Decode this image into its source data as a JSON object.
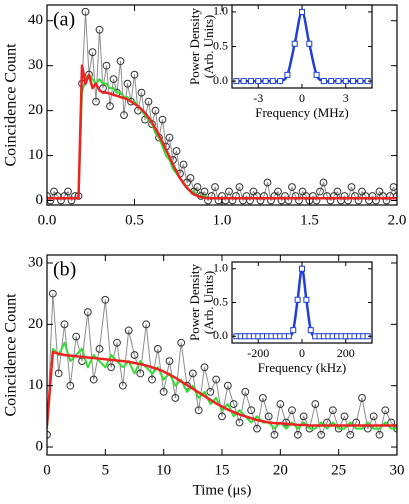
{
  "chart_data": [
    {
      "type": "line",
      "panel_label": "(a)",
      "ylabel": "Coincidence Count",
      "xlim": [
        0,
        2
      ],
      "ylim": [
        -1,
        43.5
      ],
      "xticks": [
        {
          "value": 0,
          "label": "0.0"
        },
        {
          "value": 0.5,
          "label": "0.5"
        },
        {
          "value": 1,
          "label": "1.0"
        },
        {
          "value": 1.5,
          "label": "1.5"
        },
        {
          "value": 2,
          "label": "2.0"
        }
      ],
      "yticks": [
        0,
        10,
        20,
        30,
        40
      ],
      "x": [
        0,
        0.02,
        0.04,
        0.06,
        0.08,
        0.1,
        0.12,
        0.14,
        0.16,
        0.18,
        0.2,
        0.22,
        0.24,
        0.26,
        0.28,
        0.3,
        0.32,
        0.34,
        0.36,
        0.38,
        0.4,
        0.42,
        0.44,
        0.46,
        0.48,
        0.5,
        0.52,
        0.54,
        0.56,
        0.58,
        0.6,
        0.62,
        0.64,
        0.66,
        0.68,
        0.7,
        0.72,
        0.74,
        0.76,
        0.78,
        0.8,
        0.82,
        0.84,
        0.86,
        0.88,
        0.9,
        0.92,
        0.94,
        0.96,
        0.98,
        1,
        1.02,
        1.04,
        1.06,
        1.08,
        1.1,
        1.12,
        1.14,
        1.16,
        1.18,
        1.2,
        1.22,
        1.24,
        1.26,
        1.28,
        1.3,
        1.32,
        1.34,
        1.36,
        1.38,
        1.4,
        1.42,
        1.44,
        1.46,
        1.48,
        1.5,
        1.52,
        1.54,
        1.56,
        1.58,
        1.6,
        1.62,
        1.64,
        1.66,
        1.68,
        1.7,
        1.72,
        1.74,
        1.76,
        1.78,
        1.8,
        1.82,
        1.84,
        1.86,
        1.88,
        1.9,
        1.92,
        1.94,
        1.96,
        1.98,
        2
      ],
      "series": [
        {
          "color": "#8c8c8c",
          "marker": "circle",
          "marker_color": "#333333",
          "values": [
            1,
            0,
            2,
            1,
            0,
            1,
            2,
            0,
            1,
            1,
            26,
            42,
            28,
            33,
            22,
            38,
            25,
            30,
            21,
            27,
            24,
            31,
            19,
            26,
            22,
            28,
            20,
            24,
            18,
            22,
            17,
            20,
            14,
            18,
            12,
            14,
            9,
            11,
            6,
            8,
            4,
            5,
            2,
            3,
            1,
            2,
            0,
            1,
            3,
            0,
            1,
            0,
            2,
            0,
            1,
            3,
            0,
            1,
            0,
            2,
            1,
            0,
            1,
            4,
            0,
            1,
            2,
            0,
            1,
            0,
            3,
            1,
            0,
            2,
            1,
            0,
            1,
            0,
            2,
            4,
            1,
            0,
            1,
            2,
            0,
            1,
            0,
            3,
            1,
            0,
            2,
            1,
            0,
            1,
            0,
            2,
            1,
            0,
            1,
            3,
            1
          ]
        },
        {
          "color": "#33dd33",
          "width": 2,
          "values": [
            0.5,
            0.5,
            0.5,
            0.5,
            0.5,
            0.5,
            0.5,
            0.5,
            0.5,
            0.5,
            24,
            27,
            28,
            27,
            26,
            27,
            26,
            26,
            25,
            25,
            24,
            24,
            23,
            23,
            22,
            22,
            21,
            20,
            19,
            18,
            17,
            15,
            14,
            12,
            10,
            9,
            7,
            6,
            5,
            4,
            3,
            2,
            2,
            1,
            1,
            1,
            0.5,
            0.5,
            0.5,
            0.5,
            0.5,
            0.5,
            0.5,
            0.5,
            0.5,
            0.5,
            0.5,
            0.5,
            0.5,
            0.5,
            0.5,
            0.5,
            0.5,
            0.5,
            0.5,
            0.5,
            0.5,
            0.5,
            0.5,
            0.5,
            0.5,
            0.5,
            0.5,
            0.5,
            0.5,
            0.5,
            0.5,
            0.5,
            0.5,
            0.5,
            0.5,
            0.5,
            0.5,
            0.5,
            0.5,
            0.5,
            0.5,
            0.5,
            0.5,
            0.5,
            0.5,
            0.5,
            0.5,
            0.5,
            0.5,
            0.5,
            0.5,
            0.5,
            0.5,
            0.5,
            0.5
          ]
        },
        {
          "color": "#ee2222",
          "width": 2.5,
          "values": [
            0.5,
            0.5,
            0.5,
            0.5,
            0.5,
            0.5,
            0.5,
            0.5,
            0.5,
            0.5,
            30,
            26,
            28,
            25,
            26,
            24.5,
            24,
            24,
            23.8,
            23.5,
            23.3,
            23,
            22.8,
            22.5,
            22,
            21.5,
            21,
            20.3,
            19.5,
            18.5,
            17.3,
            16,
            14.5,
            13,
            11.3,
            9.7,
            8,
            6.5,
            5,
            3.8,
            2.8,
            2,
            1.4,
            1,
            0.8,
            0.6,
            0.5,
            0.5,
            0.5,
            0.5,
            0.5,
            0.5,
            0.5,
            0.5,
            0.5,
            0.5,
            0.5,
            0.5,
            0.5,
            0.5,
            0.5,
            0.5,
            0.5,
            0.5,
            0.5,
            0.5,
            0.5,
            0.5,
            0.5,
            0.5,
            0.5,
            0.5,
            0.5,
            0.5,
            0.5,
            0.5,
            0.5,
            0.5,
            0.5,
            0.5,
            0.5,
            0.5,
            0.5,
            0.5,
            0.5,
            0.5,
            0.5,
            0.5,
            0.5,
            0.5,
            0.5,
            0.5,
            0.5,
            0.5,
            0.5,
            0.5,
            0.5,
            0.5,
            0.5,
            0.5,
            0.5
          ]
        }
      ]
    },
    {
      "type": "line",
      "xlabel": "Frequency (MHz)",
      "ylabel": [
        "Power Density",
        "(Arb. Units)"
      ],
      "xlim": [
        -4.8,
        4.8
      ],
      "ylim": [
        -0.1,
        1.1
      ],
      "xticks": [
        -3,
        0,
        3
      ],
      "yticks": [
        {
          "value": 0,
          "label": "0.0"
        },
        0.5,
        {
          "value": 1,
          "label": "1.0"
        }
      ],
      "x": [
        -4.5,
        -4,
        -3.5,
        -3,
        -2.5,
        -2,
        -1.5,
        -1,
        -0.5,
        0,
        0.5,
        1,
        1.5,
        2,
        2.5,
        3,
        3.5,
        4,
        4.5
      ],
      "series": [
        {
          "color": "#1f3fd6",
          "width": 2.5,
          "values": [
            0,
            0,
            0,
            0,
            0,
            0,
            0,
            0.09,
            0.54,
            1,
            0.54,
            0.09,
            0,
            0,
            0,
            0,
            0,
            0,
            0
          ]
        },
        {
          "color": "#1f3fd6",
          "line": false,
          "marker": "square",
          "marker_color": "#1f3fd6",
          "values": [
            0,
            0,
            0,
            0,
            0,
            0,
            0,
            0.09,
            0.54,
            1,
            0.54,
            0.09,
            0,
            0,
            0,
            0,
            0,
            0,
            0
          ]
        }
      ]
    },
    {
      "type": "line",
      "panel_label": "(b)",
      "ylabel": "Coincidence Count",
      "xlabel": "Time (μs)",
      "xlim": [
        0,
        30
      ],
      "ylim": [
        -1.3,
        31.3
      ],
      "xticks": [
        0,
        5,
        10,
        15,
        20,
        25,
        30
      ],
      "yticks": [
        0,
        10,
        20,
        30
      ],
      "x": [
        0,
        0.5,
        1,
        1.5,
        2,
        2.5,
        3,
        3.5,
        4,
        4.5,
        5,
        5.5,
        6,
        6.5,
        7,
        7.5,
        8,
        8.5,
        9,
        9.5,
        10,
        10.5,
        11,
        11.5,
        12,
        12.5,
        13,
        13.5,
        14,
        14.5,
        15,
        15.5,
        16,
        16.5,
        17,
        17.5,
        18,
        18.5,
        19,
        19.5,
        20,
        20.5,
        21,
        21.5,
        22,
        22.5,
        23,
        23.5,
        24,
        24.5,
        25,
        25.5,
        26,
        26.5,
        27,
        27.5,
        28,
        28.5,
        29,
        29.5,
        30
      ],
      "series": [
        {
          "color": "#8c8c8c",
          "marker": "circle",
          "marker_color": "#333333",
          "values": [
            2,
            25,
            12,
            20,
            10,
            18,
            14,
            22,
            11,
            16,
            24,
            13,
            17,
            10,
            19,
            15,
            12,
            20,
            11,
            16,
            9,
            14,
            8,
            17,
            10,
            12,
            6,
            13,
            9,
            11,
            5,
            10,
            7,
            4,
            9,
            6,
            3,
            8,
            5,
            2,
            7,
            4,
            6,
            2,
            5,
            3,
            7,
            2,
            4,
            6,
            3,
            5,
            2,
            4,
            8,
            3,
            5,
            2,
            6,
            4,
            3
          ]
        },
        {
          "color": "#33dd33",
          "width": 2,
          "values": [
            3,
            16,
            15,
            17,
            14,
            15,
            16,
            13,
            15,
            14,
            13,
            15,
            14,
            13,
            14,
            12,
            14,
            13,
            12,
            13,
            11,
            12,
            10,
            11,
            9,
            10,
            8,
            9,
            7,
            8,
            6,
            7,
            5,
            6,
            5,
            4,
            5,
            4,
            4,
            3,
            4,
            3,
            4,
            3,
            4,
            3,
            3,
            4,
            3,
            4,
            3,
            3,
            4,
            3,
            3,
            4,
            3,
            3,
            4,
            3,
            3
          ]
        },
        {
          "color": "#ee2222",
          "width": 2.5,
          "values": [
            3.5,
            15.5,
            15.2,
            15,
            14.9,
            14.8,
            14.7,
            14.6,
            14.5,
            14.4,
            14.3,
            14.2,
            14.1,
            14,
            13.9,
            13.7,
            13.5,
            13.3,
            13,
            12.7,
            12.3,
            11.8,
            11.3,
            10.7,
            10.1,
            9.5,
            8.9,
            8.3,
            7.7,
            7.1,
            6.6,
            6.1,
            5.7,
            5.3,
            5,
            4.7,
            4.4,
            4.2,
            4,
            3.9,
            3.85,
            3.8,
            3.7,
            3.6,
            3.6,
            3.5,
            3.5,
            3.5,
            3.5,
            3.5,
            3.5,
            3.5,
            3.5,
            3.5,
            3.5,
            3.5,
            3.5,
            3.5,
            3.5,
            3.5,
            3.5
          ]
        }
      ]
    },
    {
      "type": "line",
      "xlabel": "Frequency (kHz)",
      "ylabel": [
        "Power Density",
        "(Arb. Units)"
      ],
      "xlim": [
        -320,
        320
      ],
      "ylim": [
        -0.1,
        1.1
      ],
      "xticks": [
        -200,
        0,
        200
      ],
      "yticks": [
        {
          "value": 0,
          "label": "0.0"
        },
        0.5,
        {
          "value": 1,
          "label": "1.0"
        }
      ],
      "x": [
        -300,
        -280,
        -260,
        -240,
        -220,
        -200,
        -180,
        -160,
        -140,
        -120,
        -100,
        -80,
        -60,
        -40,
        -20,
        0,
        20,
        40,
        60,
        80,
        100,
        120,
        140,
        160,
        180,
        200,
        220,
        240,
        260,
        280,
        300
      ],
      "series": [
        {
          "color": "#1f3fd6",
          "width": 2.5,
          "values": [
            0,
            0,
            0,
            0,
            0,
            0,
            0,
            0,
            0,
            0,
            0,
            0,
            0,
            0.09,
            0.54,
            1,
            0.54,
            0.09,
            0,
            0,
            0,
            0,
            0,
            0,
            0,
            0,
            0,
            0,
            0,
            0,
            0
          ]
        },
        {
          "color": "#1f3fd6",
          "line": false,
          "marker": "square",
          "marker_color": "#1f3fd6",
          "values": [
            0,
            0,
            0,
            0,
            0,
            0,
            0,
            0,
            0,
            0,
            0,
            0,
            0,
            0.09,
            0.54,
            1,
            0.54,
            0.09,
            0,
            0,
            0,
            0,
            0,
            0,
            0,
            0,
            0,
            0,
            0,
            0,
            0
          ]
        }
      ]
    }
  ]
}
